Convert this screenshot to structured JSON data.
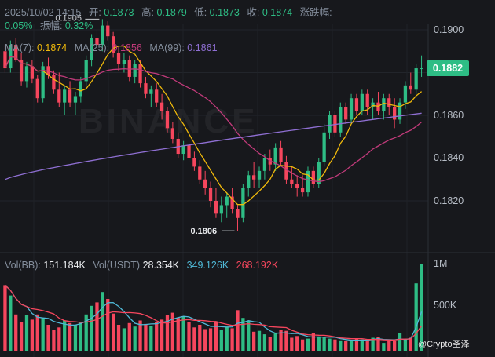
{
  "header": {
    "datetime": "2025/10/02 14:15",
    "open_label": "开:",
    "open": "0.1873",
    "high_label": "高:",
    "high": "0.1879",
    "low_label": "低:",
    "low": "0.1873",
    "close_label": "收:",
    "close": "0.1874",
    "change_label": "涨跌幅:",
    "change": "0.05%",
    "amp_label": "振幅:",
    "amp": "0.32%"
  },
  "ma_legend": {
    "ma7_label": "MA(7):",
    "ma7": "0.1874",
    "ma25_label": "MA(25):",
    "ma25": "0.1856",
    "ma99_label": "MA(99):",
    "ma99": "0.1861"
  },
  "vol_legend": {
    "vol_bb_label": "Vol(BB):",
    "vol_bb": "151.184K",
    "vol_usdt_label": "Vol(USDT)",
    "vol_usdt": "28.354K",
    "ma1": "349.126K",
    "ma2": "268.192K"
  },
  "current_price": "0.1882",
  "watermark": "BINANCE",
  "credit": "@Crypto圣泽",
  "colors": {
    "up": "#2ebd85",
    "down": "#f6465d",
    "ma7": "#f0b90b",
    "ma25": "#c13a7a",
    "ma99": "#8f6fd3",
    "background": "#17181c"
  },
  "chart_data": [
    {
      "type": "candlestick",
      "price_axis": {
        "ticks": [
          "0.1900",
          "0.1880",
          "0.1860",
          "0.1840",
          "0.1820"
        ],
        "range": [
          0.18,
          0.1905
        ]
      },
      "annotations": {
        "high_marker": "0.1905",
        "low_marker": "0.1806"
      },
      "candles": [
        [
          0.189,
          0.1893,
          0.188,
          0.1882
        ],
        [
          0.1882,
          0.1895,
          0.188,
          0.1893
        ],
        [
          0.1893,
          0.1896,
          0.1885,
          0.1886
        ],
        [
          0.1886,
          0.1889,
          0.1874,
          0.1876
        ],
        [
          0.1876,
          0.1885,
          0.1873,
          0.1883
        ],
        [
          0.1883,
          0.1886,
          0.1875,
          0.1877
        ],
        [
          0.1877,
          0.1879,
          0.1866,
          0.1868
        ],
        [
          0.1868,
          0.1885,
          0.1866,
          0.1883
        ],
        [
          0.1883,
          0.1887,
          0.1877,
          0.1879
        ],
        [
          0.1879,
          0.1881,
          0.187,
          0.1872
        ],
        [
          0.1872,
          0.188,
          0.1864,
          0.1866
        ],
        [
          0.1866,
          0.1874,
          0.186,
          0.1872
        ],
        [
          0.1872,
          0.1876,
          0.1864,
          0.1866
        ],
        [
          0.1866,
          0.1871,
          0.186,
          0.1869
        ],
        [
          0.1869,
          0.1878,
          0.1866,
          0.1876
        ],
        [
          0.1876,
          0.1888,
          0.1874,
          0.1886
        ],
        [
          0.1886,
          0.1898,
          0.1883,
          0.1896
        ],
        [
          0.1896,
          0.19,
          0.1891,
          0.1893
        ],
        [
          0.1893,
          0.1905,
          0.189,
          0.1902
        ],
        [
          0.1902,
          0.1904,
          0.1895,
          0.1897
        ],
        [
          0.1897,
          0.1899,
          0.1887,
          0.1889
        ],
        [
          0.1889,
          0.1892,
          0.1881,
          0.1884
        ],
        [
          0.1884,
          0.1889,
          0.188,
          0.1886
        ],
        [
          0.1886,
          0.1888,
          0.1876,
          0.1878
        ],
        [
          0.1878,
          0.1886,
          0.1875,
          0.1884
        ],
        [
          0.1884,
          0.1886,
          0.1873,
          0.1875
        ],
        [
          0.1875,
          0.1878,
          0.1868,
          0.187
        ],
        [
          0.187,
          0.1874,
          0.1864,
          0.1872
        ],
        [
          0.1872,
          0.1875,
          0.1864,
          0.1866
        ],
        [
          0.1866,
          0.187,
          0.1858,
          0.1862
        ],
        [
          0.1862,
          0.1864,
          0.1852,
          0.1854
        ],
        [
          0.1854,
          0.1857,
          0.1847,
          0.1849
        ],
        [
          0.1849,
          0.1852,
          0.184,
          0.1842
        ],
        [
          0.1842,
          0.1848,
          0.1839,
          0.1846
        ],
        [
          0.1846,
          0.1848,
          0.1838,
          0.184
        ],
        [
          0.184,
          0.1843,
          0.1834,
          0.1836
        ],
        [
          0.1836,
          0.1839,
          0.1828,
          0.183
        ],
        [
          0.183,
          0.1834,
          0.1823,
          0.1826
        ],
        [
          0.1826,
          0.1829,
          0.1817,
          0.182
        ],
        [
          0.182,
          0.1826,
          0.1812,
          0.1814
        ],
        [
          0.1814,
          0.1822,
          0.181,
          0.1818
        ],
        [
          0.1818,
          0.1824,
          0.1812,
          0.1822
        ],
        [
          0.1822,
          0.1826,
          0.1814,
          0.1816
        ],
        [
          0.1816,
          0.1818,
          0.1806,
          0.1812
        ],
        [
          0.1812,
          0.1828,
          0.181,
          0.1826
        ],
        [
          0.1826,
          0.1834,
          0.1822,
          0.1832
        ],
        [
          0.1832,
          0.1838,
          0.1826,
          0.183
        ],
        [
          0.183,
          0.1836,
          0.1826,
          0.1834
        ],
        [
          0.1834,
          0.1842,
          0.183,
          0.184
        ],
        [
          0.184,
          0.1844,
          0.1834,
          0.1837
        ],
        [
          0.1837,
          0.1847,
          0.1834,
          0.1845
        ],
        [
          0.1845,
          0.1848,
          0.1836,
          0.1838
        ],
        [
          0.1838,
          0.1841,
          0.1828,
          0.183
        ],
        [
          0.183,
          0.1836,
          0.1826,
          0.1828
        ],
        [
          0.1828,
          0.1832,
          0.1822,
          0.1826
        ],
        [
          0.1826,
          0.1832,
          0.1822,
          0.1824
        ],
        [
          0.1824,
          0.1836,
          0.1822,
          0.1834
        ],
        [
          0.1834,
          0.1836,
          0.1826,
          0.1828
        ],
        [
          0.1828,
          0.184,
          0.1826,
          0.1838
        ],
        [
          0.1838,
          0.1856,
          0.1836,
          0.1852
        ],
        [
          0.1852,
          0.1862,
          0.1849,
          0.186
        ],
        [
          0.186,
          0.1862,
          0.185,
          0.1852
        ],
        [
          0.1852,
          0.1866,
          0.185,
          0.1864
        ],
        [
          0.1864,
          0.1866,
          0.1856,
          0.1858
        ],
        [
          0.1858,
          0.187,
          0.1856,
          0.1868
        ],
        [
          0.1868,
          0.187,
          0.186,
          0.1862
        ],
        [
          0.1862,
          0.1872,
          0.186,
          0.187
        ],
        [
          0.187,
          0.1872,
          0.186,
          0.1864
        ],
        [
          0.1864,
          0.1868,
          0.1858,
          0.1866
        ],
        [
          0.1866,
          0.1871,
          0.186,
          0.1862
        ],
        [
          0.1862,
          0.187,
          0.1858,
          0.1868
        ],
        [
          0.1868,
          0.187,
          0.186,
          0.1864
        ],
        [
          0.1864,
          0.1868,
          0.1854,
          0.1858
        ],
        [
          0.1858,
          0.1868,
          0.1856,
          0.1866
        ],
        [
          0.1866,
          0.1876,
          0.1863,
          0.1874
        ],
        [
          0.1874,
          0.188,
          0.187,
          0.1872
        ],
        [
          0.1872,
          0.1884,
          0.187,
          0.1882
        ],
        [
          0.1882,
          0.1888,
          0.1878,
          0.1882
        ]
      ]
    },
    {
      "type": "bar",
      "title": "Vol(BB)",
      "axis_ticks": [
        "1M",
        "500K"
      ],
      "values": [
        760,
        640,
        420,
        330,
        410,
        360,
        420,
        380,
        300,
        240,
        270,
        350,
        320,
        300,
        330,
        420,
        520,
        560,
        680,
        600,
        430,
        300,
        260,
        320,
        280,
        350,
        310,
        290,
        330,
        360,
        410,
        440,
        380,
        400,
        330,
        270,
        300,
        250,
        260,
        340,
        240,
        280,
        260,
        470,
        380,
        350,
        220,
        230,
        190,
        160,
        210,
        240,
        230,
        150,
        170,
        130,
        140,
        200,
        160,
        150,
        140,
        130,
        120,
        110,
        110,
        140,
        130,
        120,
        150,
        160,
        90,
        120,
        110,
        200,
        130,
        150,
        780,
        1000
      ],
      "up": [
        false,
        true,
        false,
        false,
        true,
        false,
        false,
        true,
        false,
        false,
        false,
        true,
        false,
        true,
        true,
        true,
        true,
        false,
        true,
        false,
        false,
        false,
        true,
        false,
        true,
        false,
        false,
        true,
        false,
        false,
        false,
        false,
        false,
        true,
        false,
        false,
        false,
        false,
        false,
        false,
        true,
        true,
        false,
        false,
        true,
        true,
        false,
        true,
        true,
        false,
        true,
        false,
        false,
        false,
        false,
        false,
        true,
        false,
        true,
        true,
        true,
        false,
        true,
        false,
        true,
        false,
        true,
        false,
        true,
        false,
        true,
        false,
        false,
        true,
        true,
        false,
        true,
        true
      ]
    }
  ]
}
